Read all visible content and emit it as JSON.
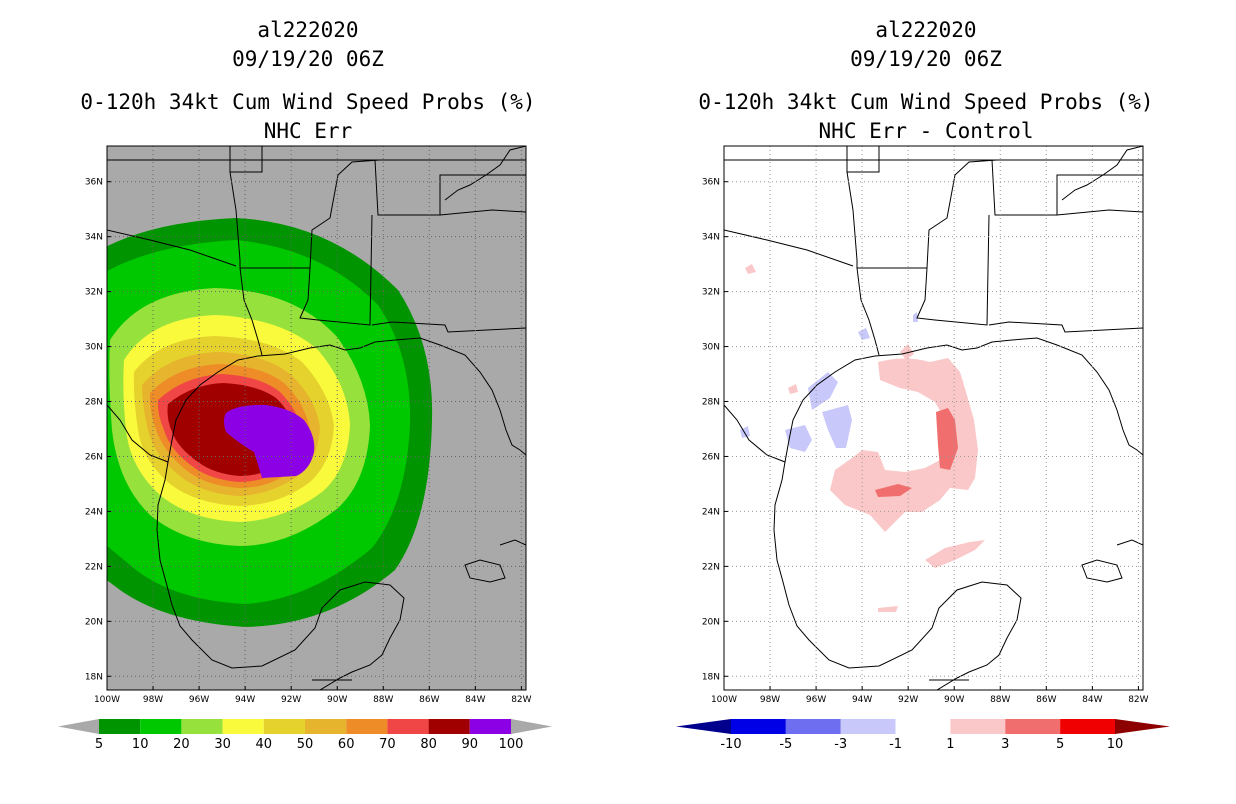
{
  "panels": [
    {
      "id": "left",
      "storm_id": "al222020",
      "datetime": "09/19/20 06Z",
      "product": "0-120h 34kt Cum Wind Speed Probs (%)",
      "subtitle": "NHC Err",
      "background_color": "#a9a9a9",
      "colorbar": {
        "labels": [
          "5",
          "10",
          "20",
          "30",
          "40",
          "50",
          "60",
          "70",
          "80",
          "90",
          "100"
        ],
        "colors": [
          "#009400",
          "#00c800",
          "#96e13c",
          "#fafa3c",
          "#e6d22d",
          "#e6b42d",
          "#ee8c28",
          "#f04646",
          "#a00000",
          "#8c00e6"
        ],
        "end_color_low": "#a9a9a9",
        "end_color_high": "#a9a9a9"
      }
    },
    {
      "id": "right",
      "storm_id": "al222020",
      "datetime": "09/19/20 06Z",
      "product": "0-120h 34kt Cum Wind Speed Probs (%)",
      "subtitle": "NHC Err - Control",
      "background_color": "#ffffff",
      "colorbar": {
        "labels": [
          "-10",
          "-5",
          "-3",
          "-1",
          "1",
          "3",
          "5",
          "10"
        ],
        "colors": [
          "#0000e6",
          "#6e6ef0",
          "#c8c8fa",
          "#ffffff",
          "#fac8c8",
          "#f06e6e",
          "#f00000"
        ],
        "end_color_low": "#00008c",
        "end_color_high": "#8c0000"
      }
    }
  ],
  "axes": {
    "lon_ticks": [
      "100W",
      "98W",
      "96W",
      "94W",
      "92W",
      "90W",
      "88W",
      "86W",
      "84W",
      "82W"
    ],
    "lat_ticks": [
      "36N",
      "34N",
      "32N",
      "30N",
      "28N",
      "26N",
      "24N",
      "22N",
      "20N",
      "18N"
    ],
    "lon_range": [
      -100,
      -81.8
    ],
    "lat_range": [
      17.5,
      37.3
    ]
  }
}
